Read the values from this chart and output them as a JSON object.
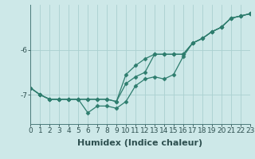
{
  "title": "",
  "xlabel": "Humidex (Indice chaleur)",
  "ylabel": "",
  "bg_color": "#cde8e8",
  "line_color": "#2e7d6e",
  "marker": "D",
  "markersize": 2.5,
  "linewidth": 0.9,
  "x": [
    0,
    1,
    2,
    3,
    4,
    5,
    6,
    7,
    8,
    9,
    10,
    11,
    12,
    13,
    14,
    15,
    16,
    17,
    18,
    19,
    20,
    21,
    22,
    23
  ],
  "line1": [
    -6.85,
    -7.0,
    -7.1,
    -7.1,
    -7.1,
    -7.1,
    -7.1,
    -7.1,
    -7.1,
    -7.15,
    -6.75,
    -6.6,
    -6.5,
    -6.1,
    -6.1,
    -6.1,
    -6.1,
    -5.85,
    -5.75,
    -5.6,
    -5.5,
    -5.3,
    -5.25,
    -5.2
  ],
  "line2": [
    -6.85,
    -7.0,
    -7.1,
    -7.1,
    -7.1,
    -7.1,
    -7.4,
    -7.25,
    -7.25,
    -7.3,
    -7.15,
    -6.8,
    -6.65,
    -6.6,
    -6.65,
    -6.55,
    -6.15,
    -5.85,
    -5.75,
    -5.6,
    -5.5,
    -5.3,
    -5.25,
    -5.2
  ],
  "line3": [
    -6.85,
    -7.0,
    -7.1,
    -7.1,
    -7.1,
    -7.1,
    -7.1,
    -7.1,
    -7.1,
    -7.15,
    -6.55,
    -6.35,
    -6.2,
    -6.1,
    -6.1,
    -6.1,
    -6.1,
    -5.85,
    -5.75,
    -5.6,
    -5.5,
    -5.3,
    -5.25,
    -5.2
  ],
  "ylim": [
    -7.65,
    -5.0
  ],
  "xlim": [
    0,
    23
  ],
  "yticks": [
    -7.0,
    -6.0
  ],
  "grid_color": "#aad0d0",
  "xlabel_fontsize": 8,
  "tick_fontsize": 6.5,
  "label_color": "#2e5050"
}
